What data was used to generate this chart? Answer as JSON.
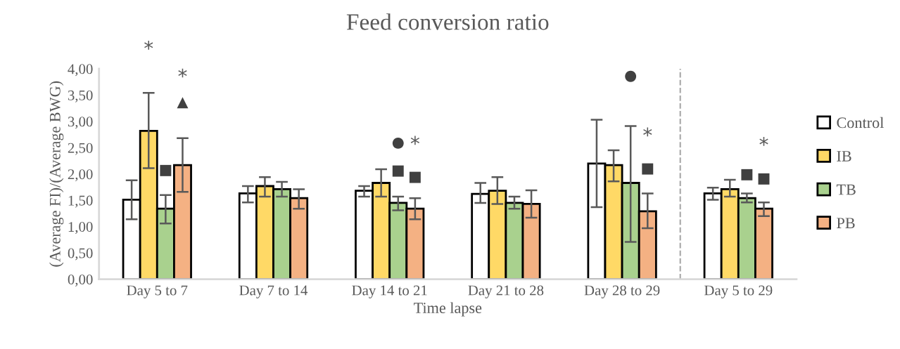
{
  "chart_data": {
    "type": "bar",
    "title": "Feed conversion ratio",
    "xlabel": "Time lapse",
    "ylabel": "(Average FI)/(Average BWG)",
    "categories": [
      "Day 5 to 7",
      "Day 7 to 14",
      "Day 14 to 21",
      "Day 21 to 28",
      "Day 28 to 29",
      "Day 5 to 29"
    ],
    "series": [
      {
        "name": "Control",
        "color": "#ffffff",
        "values": [
          1.51,
          1.63,
          1.68,
          1.62,
          2.2,
          1.63
        ],
        "errors": [
          [
            1.14,
            1.88
          ],
          [
            1.46,
            1.77
          ],
          [
            1.57,
            1.77
          ],
          [
            1.45,
            1.83
          ],
          [
            1.37,
            3.03
          ],
          [
            1.51,
            1.74
          ]
        ]
      },
      {
        "name": "IB",
        "color": "#ffd966",
        "values": [
          2.82,
          1.77,
          1.83,
          1.68,
          2.17,
          1.71
        ],
        "errors": [
          [
            2.11,
            3.54
          ],
          [
            1.57,
            1.94
          ],
          [
            1.57,
            2.09
          ],
          [
            1.43,
            1.94
          ],
          [
            1.86,
            2.45
          ],
          [
            1.57,
            1.89
          ]
        ]
      },
      {
        "name": "TB",
        "color": "#a9d18e",
        "values": [
          1.34,
          1.71,
          1.45,
          1.45,
          1.83,
          1.54
        ],
        "errors": [
          [
            1.06,
            1.6
          ],
          [
            1.57,
            1.85
          ],
          [
            1.31,
            1.57
          ],
          [
            1.34,
            1.57
          ],
          [
            0.71,
            2.91
          ],
          [
            1.46,
            1.63
          ]
        ]
      },
      {
        "name": "PB",
        "color": "#f4b183",
        "values": [
          2.17,
          1.54,
          1.34,
          1.43,
          1.29,
          1.34
        ],
        "errors": [
          [
            1.66,
            2.68
          ],
          [
            1.34,
            1.71
          ],
          [
            1.14,
            1.54
          ],
          [
            1.17,
            1.69
          ],
          [
            0.97,
            1.63
          ],
          [
            1.2,
            1.46
          ]
        ]
      }
    ],
    "ylim": [
      0,
      4
    ],
    "yticks": [
      {
        "value": 0,
        "label": "0,00"
      },
      {
        "value": 0.5,
        "label": "0,50"
      },
      {
        "value": 1,
        "label": "1,00"
      },
      {
        "value": 1.5,
        "label": "1,50"
      },
      {
        "value": 2,
        "label": "2,00"
      },
      {
        "value": 2.5,
        "label": "2,50"
      },
      {
        "value": 3,
        "label": "3,00"
      },
      {
        "value": 3.5,
        "label": "3,50"
      },
      {
        "value": 4,
        "label": "4,00"
      }
    ],
    "annotations": [
      "*",
      "■",
      "*",
      "▲",
      "●",
      "■",
      "*",
      "■",
      "●",
      "*",
      "■",
      "*",
      "■",
      "■"
    ],
    "grid": false,
    "legend": "right"
  }
}
